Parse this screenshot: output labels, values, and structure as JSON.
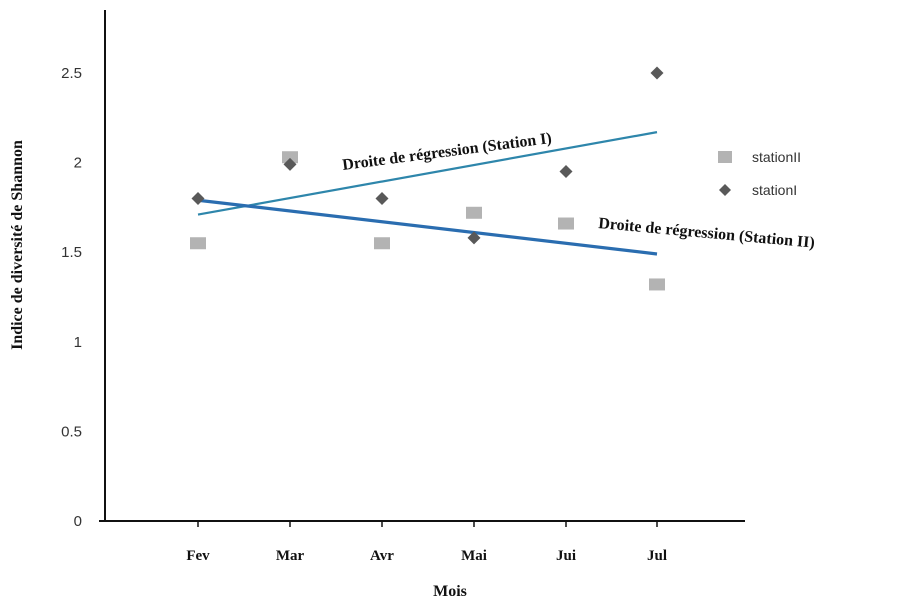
{
  "chart_data": {
    "type": "scatter",
    "xlabel": "Mois",
    "ylabel": "Indice de diversité de Shannon",
    "categories": [
      "Fev",
      "Mar",
      "Avr",
      "Mai",
      "Jui",
      "Jul"
    ],
    "ylim": [
      0,
      2.5
    ],
    "yticks": [
      "0",
      "0.5",
      "1",
      "1.5",
      "2",
      "2.5"
    ],
    "series": [
      {
        "name": "stationII",
        "marker": "square",
        "color": "#b3b3b3",
        "values": [
          1.55,
          2.03,
          1.55,
          1.72,
          1.66,
          1.32
        ]
      },
      {
        "name": "stationI",
        "marker": "diamond",
        "color": "#595959",
        "values": [
          1.8,
          1.99,
          1.8,
          1.58,
          1.95,
          2.5
        ]
      }
    ],
    "trendlines": [
      {
        "label": "Droite de régression (Station I)",
        "series": "stationI",
        "color": "#2e86ab",
        "start": 1.71,
        "end": 2.17
      },
      {
        "label": "Droite de régression (Station II)",
        "series": "stationII",
        "color": "#2a6db0",
        "start": 1.79,
        "end": 1.49
      }
    ],
    "legend": "right",
    "grid": false
  }
}
